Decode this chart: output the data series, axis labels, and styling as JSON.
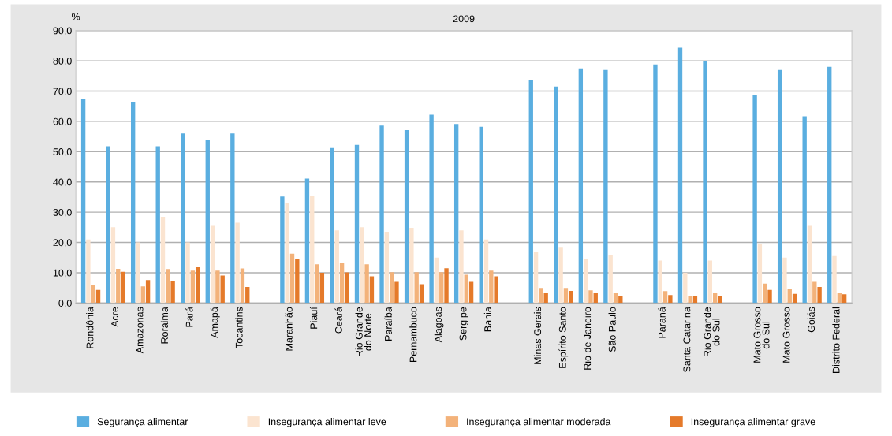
{
  "chart_data": {
    "type": "bar",
    "title": "2009",
    "ylabel": "%",
    "categories": [
      "Rondônia",
      "Acre",
      "Amazonas",
      "Roraima",
      "Pará",
      "Amapá",
      "Tocantins",
      null,
      "Maranhão",
      "Piauí",
      "Ceará",
      "Rio Grande\ndo Norte",
      "Paraíba",
      "Pernambuco",
      "Alagoas",
      "Sergipe",
      "Bahia",
      null,
      "Minas Gerais",
      "Espírito Santo",
      "Rio de Janeiro",
      "São Paulo",
      null,
      "Paraná",
      "Santa Catarina",
      "Rio Grande\ndo Sul",
      null,
      "Mato Grosso\ndo Sul",
      "Mato Grosso",
      "Goiás",
      "Distrito Federal"
    ],
    "series": [
      {
        "name": "Segurança alimentar",
        "color": "#5aaee0",
        "values": [
          67.5,
          51.8,
          66.2,
          51.8,
          56.0,
          53.9,
          56.0,
          null,
          35.2,
          41.1,
          51.2,
          52.2,
          58.6,
          57.1,
          62.2,
          59.1,
          58.2,
          null,
          73.8,
          71.5,
          77.5,
          77.0,
          null,
          78.8,
          84.3,
          80.0,
          null,
          68.6,
          77.0,
          61.7,
          78.0
        ]
      },
      {
        "name": "Insegurança alimentar leve",
        "color": "#fbe4d0",
        "values": [
          21.0,
          25.0,
          20.0,
          28.5,
          20.0,
          25.5,
          26.5,
          null,
          33.0,
          35.5,
          24.0,
          25.0,
          23.5,
          24.8,
          15.0,
          24.0,
          21.0,
          null,
          17.0,
          18.5,
          14.5,
          16.0,
          null,
          14.0,
          10.0,
          14.0,
          null,
          19.5,
          15.0,
          25.5,
          15.5
        ]
      },
      {
        "name": "Insegurança alimentar moderada",
        "color": "#f3b27a",
        "values": [
          6.0,
          11.3,
          5.5,
          11.2,
          10.7,
          10.7,
          11.4,
          null,
          16.3,
          12.8,
          13.2,
          12.8,
          10.2,
          10.2,
          10.2,
          9.3,
          10.7,
          null,
          5.0,
          5.0,
          4.2,
          3.4,
          null,
          3.9,
          2.3,
          3.2,
          null,
          6.4,
          4.6,
          7.0,
          3.4
        ]
      },
      {
        "name": "Insegurança alimentar grave",
        "color": "#e57a2a",
        "values": [
          4.3,
          10.3,
          7.6,
          7.3,
          11.8,
          9.1,
          5.3,
          null,
          14.6,
          10.0,
          10.1,
          8.8,
          7.0,
          6.2,
          11.5,
          7.0,
          8.8,
          null,
          3.2,
          4.0,
          3.2,
          2.4,
          null,
          2.6,
          2.2,
          2.3,
          null,
          4.3,
          3.0,
          5.3,
          2.9
        ]
      }
    ],
    "ylim": [
      0,
      90
    ],
    "yticks": [
      {
        "value": 0,
        "label": "0,0"
      },
      {
        "value": 10,
        "label": "10,0"
      },
      {
        "value": 20,
        "label": "20,0"
      },
      {
        "value": 30,
        "label": "30,0"
      },
      {
        "value": 40,
        "label": "40,0"
      },
      {
        "value": 50,
        "label": "50,0"
      },
      {
        "value": 60,
        "label": "60,0"
      },
      {
        "value": 70,
        "label": "70,0"
      },
      {
        "value": 80,
        "label": "80,0"
      },
      {
        "value": 90,
        "label": "90,0"
      }
    ],
    "grid": "y",
    "legend": "bottom"
  }
}
